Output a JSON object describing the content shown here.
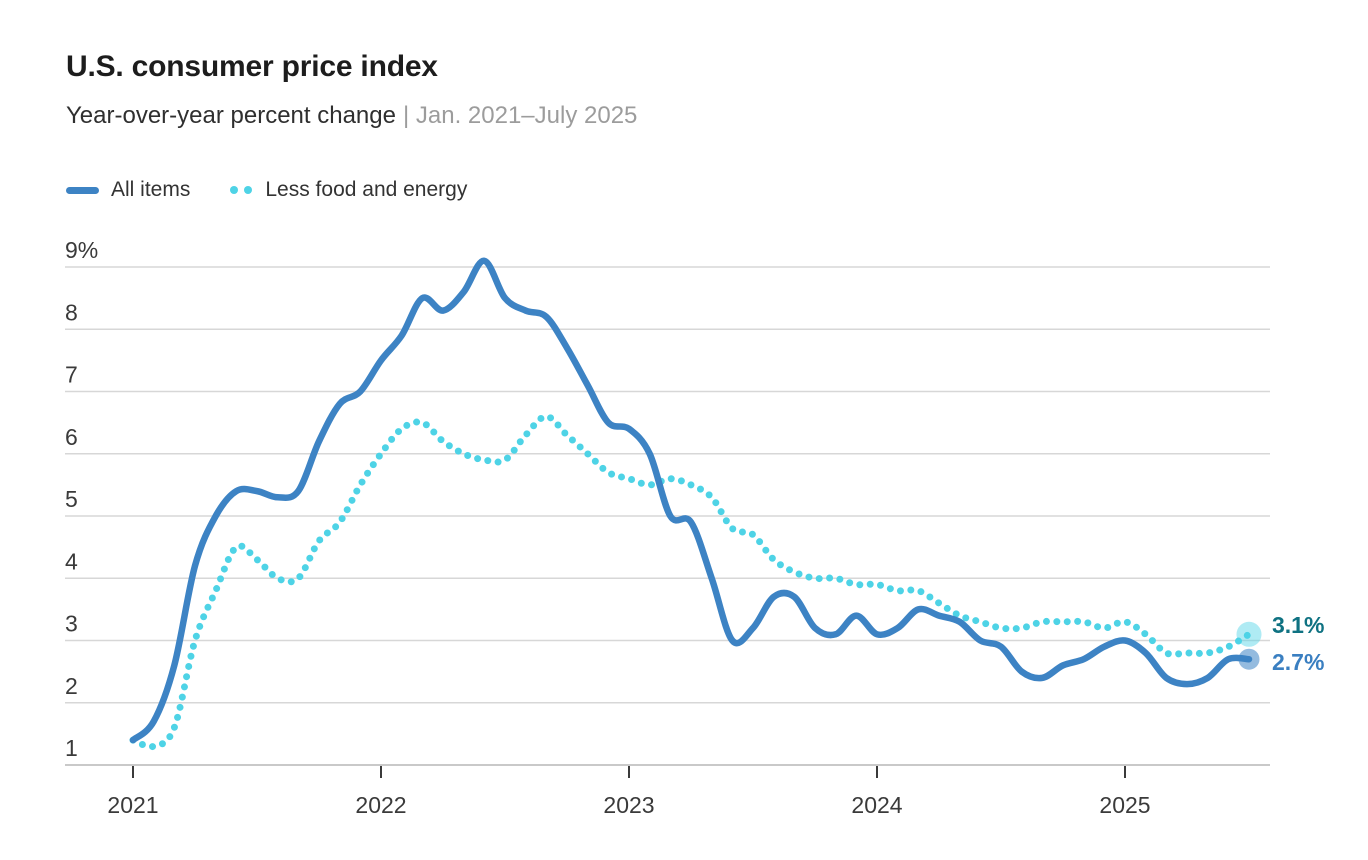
{
  "chart_data": {
    "type": "line",
    "title": "U.S. consumer price index",
    "subtitle": "Year-over-year percent change",
    "date_range": "| Jan. 2021–July 2025",
    "x_unit": "month",
    "x_start": "Jan 2021",
    "x_end": "July 2025",
    "x_tick_labels": [
      "2021",
      "2022",
      "2023",
      "2024",
      "2025"
    ],
    "y_ticks": [
      9,
      8,
      7,
      6,
      5,
      4,
      3,
      2,
      1
    ],
    "y_tick_labels": [
      "9%",
      "8",
      "7",
      "6",
      "5",
      "4",
      "3",
      "2",
      "1"
    ],
    "ylim": [
      1,
      9
    ],
    "grid": "horizontal",
    "legend_position": "top-left",
    "axis_label_color": "#3a3a3a",
    "gridline_color": "#d7d7d7",
    "baseline_color": "#c9c9c9",
    "series": [
      {
        "name": "All items",
        "style": "solid",
        "color": "#3d83c4",
        "end_label": "2.7%",
        "end_label_color": "#3a7fc1",
        "values": [
          1.4,
          1.7,
          2.6,
          4.2,
          5.0,
          5.4,
          5.4,
          5.3,
          5.4,
          6.2,
          6.8,
          7.0,
          7.5,
          7.9,
          8.5,
          8.3,
          8.6,
          9.1,
          8.5,
          8.3,
          8.2,
          7.7,
          7.1,
          6.5,
          6.4,
          6.0,
          5.0,
          4.9,
          4.0,
          3.0,
          3.2,
          3.7,
          3.7,
          3.2,
          3.1,
          3.4,
          3.1,
          3.2,
          3.5,
          3.4,
          3.3,
          3.0,
          2.9,
          2.5,
          2.4,
          2.6,
          2.7,
          2.9,
          3.0,
          2.8,
          2.4,
          2.3,
          2.4,
          2.7,
          2.7
        ]
      },
      {
        "name": "Less food and energy",
        "style": "dotted",
        "color": "#4ed3e6",
        "end_label": "3.1%",
        "end_label_color": "#0f7282",
        "values": [
          1.4,
          1.3,
          1.6,
          3.0,
          3.8,
          4.5,
          4.3,
          4.0,
          4.0,
          4.6,
          4.9,
          5.5,
          6.0,
          6.4,
          6.5,
          6.2,
          6.0,
          5.9,
          5.9,
          6.3,
          6.6,
          6.3,
          6.0,
          5.7,
          5.6,
          5.5,
          5.6,
          5.5,
          5.3,
          4.8,
          4.7,
          4.3,
          4.1,
          4.0,
          4.0,
          3.9,
          3.9,
          3.8,
          3.8,
          3.6,
          3.4,
          3.3,
          3.2,
          3.2,
          3.3,
          3.3,
          3.3,
          3.2,
          3.3,
          3.1,
          2.8,
          2.8,
          2.8,
          2.9,
          3.1
        ]
      }
    ]
  }
}
